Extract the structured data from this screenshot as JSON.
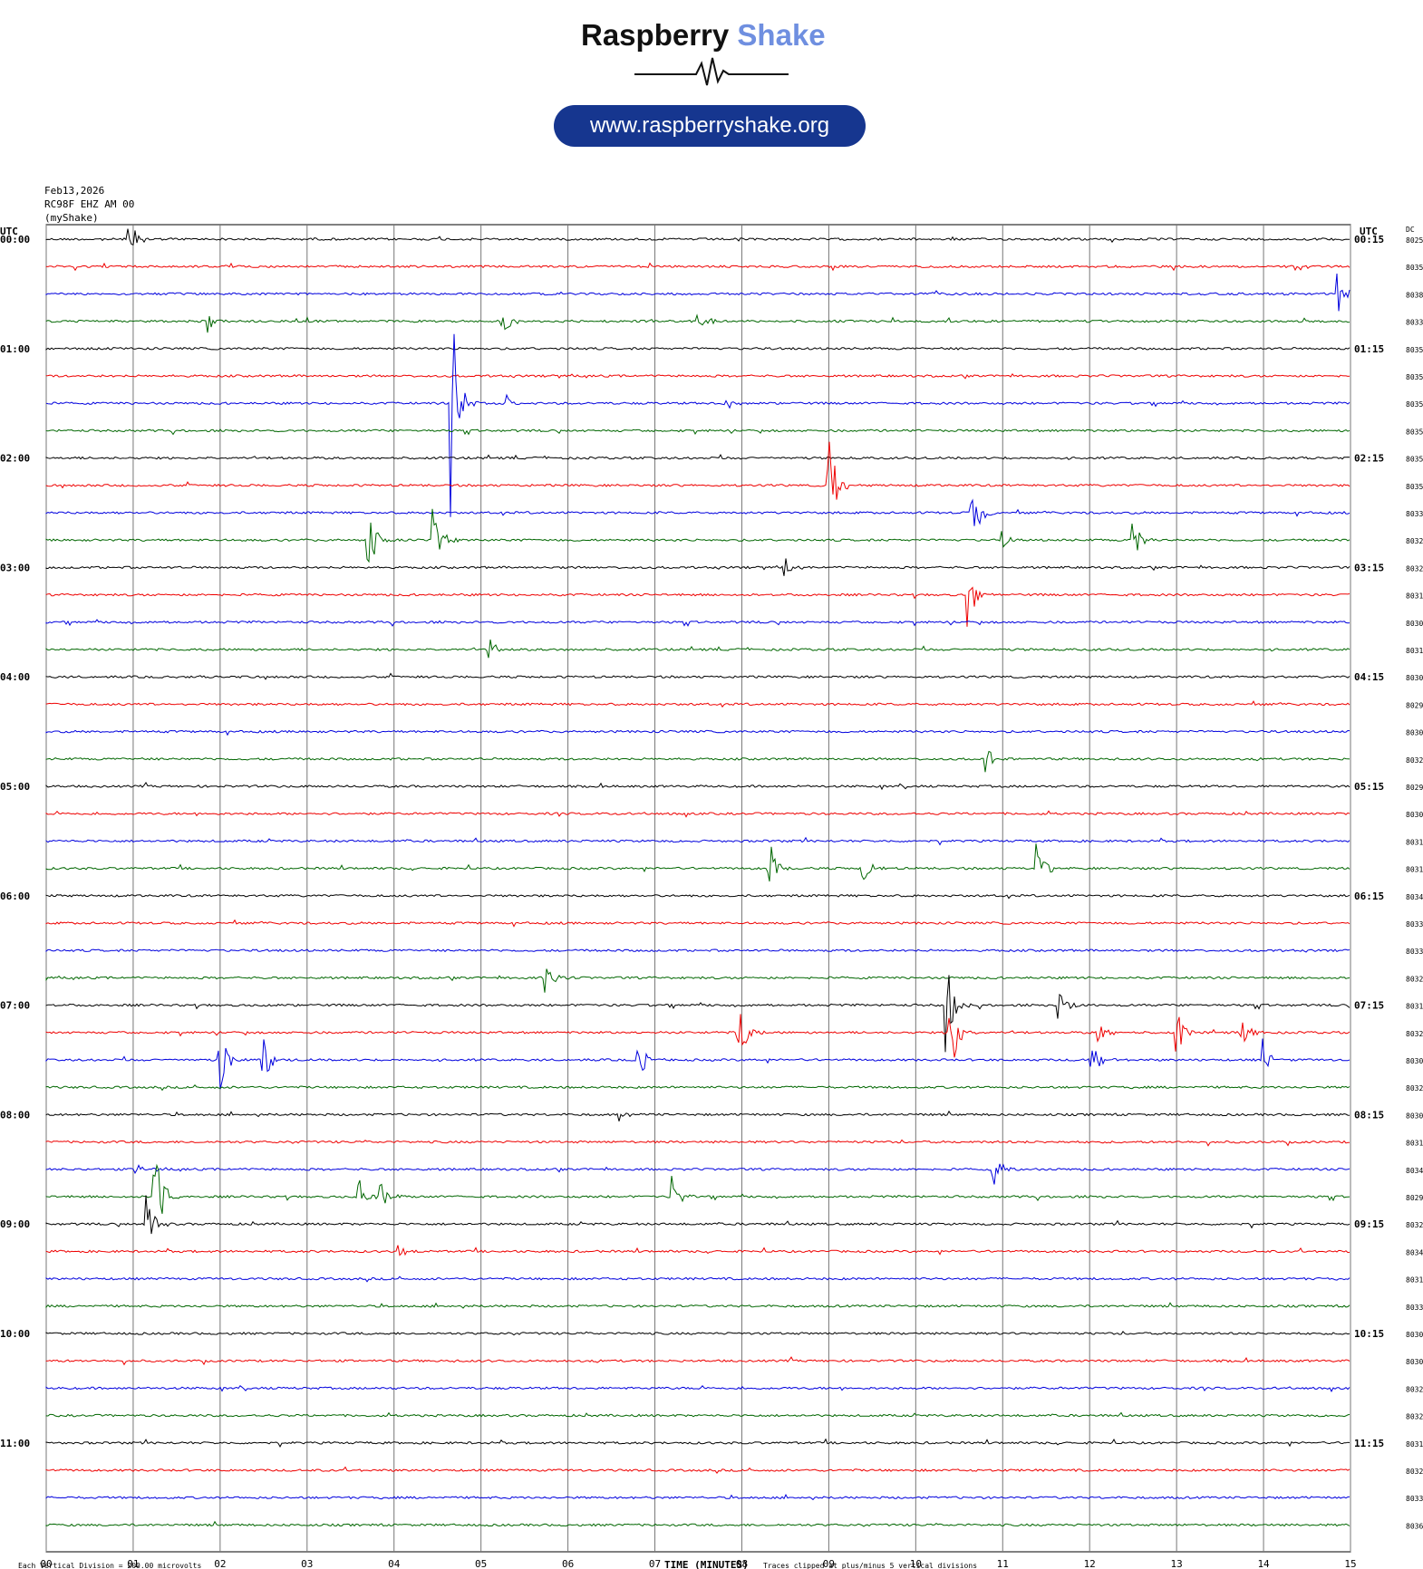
{
  "logo": {
    "title_left": "Raspberry",
    "title_right": "Shake",
    "url": "www.raspberryshake.org"
  },
  "header": {
    "date": "Feb13,2026",
    "station": "RC98F EHZ AM 00",
    "source": "(myShake)"
  },
  "chart_data": {
    "type": "line",
    "title": "",
    "xlabel": "TIME (MINUTES)",
    "x_ticks": [
      "00",
      "01",
      "02",
      "03",
      "04",
      "05",
      "06",
      "07",
      "08",
      "09",
      "10",
      "11",
      "12",
      "13",
      "14",
      "15"
    ],
    "xlim": [
      0,
      15
    ],
    "left_axis_label": "UTC",
    "right_axis_label": "UTC",
    "dc_label": "DC",
    "left_hour_labels": [
      "00:00",
      "01:00",
      "02:00",
      "03:00",
      "04:00",
      "05:00",
      "06:00",
      "07:00",
      "08:00",
      "09:00",
      "10:00",
      "11:00"
    ],
    "right_hour_labels": [
      "00:15",
      "01:15",
      "02:15",
      "03:15",
      "04:15",
      "05:15",
      "06:15",
      "07:15",
      "08:15",
      "09:15",
      "10:15",
      "11:15"
    ],
    "trace_colors": [
      "#000000",
      "#ee0000",
      "#0000dd",
      "#006600"
    ],
    "dc_values": [
      "8025",
      "8035",
      "8038",
      "8033",
      "8035",
      "8035",
      "8035",
      "8035",
      "8035",
      "8035",
      "8033",
      "8032",
      "8032",
      "8031",
      "8030",
      "8031",
      "8030",
      "8029",
      "8030",
      "8032",
      "8029",
      "8030",
      "8031",
      "8031",
      "8034",
      "8033",
      "8033",
      "8032",
      "8031",
      "8032",
      "8030",
      "8032",
      "8030",
      "8031",
      "8034",
      "8029",
      "8032",
      "8034",
      "8031",
      "8033",
      "8030",
      "8030",
      "8032",
      "8032",
      "8031",
      "8032",
      "8033",
      "8036"
    ],
    "footer_left": "Each Vertical Division =  200.00 microvolts",
    "footer_right": "Traces clipped at plus/minus 5 vertical divisions",
    "events": [
      {
        "row": 0,
        "minute": 0.95,
        "amp": 28,
        "color": "#000000"
      },
      {
        "row": 2,
        "minute": 14.85,
        "amp": 26,
        "color": "#0000dd"
      },
      {
        "row": 3,
        "minute": 1.85,
        "amp": 16,
        "color": "#006600"
      },
      {
        "row": 3,
        "minute": 5.25,
        "amp": 18,
        "color": "#006600"
      },
      {
        "row": 3,
        "minute": 7.5,
        "amp": 16,
        "color": "#006600"
      },
      {
        "row": 6,
        "minute": 4.65,
        "amp": 140,
        "color": "#0000dd"
      },
      {
        "row": 6,
        "minute": 5.3,
        "amp": 10,
        "color": "#0000dd"
      },
      {
        "row": 6,
        "minute": 7.8,
        "amp": 10,
        "color": "#0000dd"
      },
      {
        "row": 9,
        "minute": 9.0,
        "amp": 60,
        "color": "#ee0000"
      },
      {
        "row": 10,
        "minute": 10.65,
        "amp": 40,
        "color": "#0000dd"
      },
      {
        "row": 11,
        "minute": 3.7,
        "amp": 45,
        "color": "#006600"
      },
      {
        "row": 11,
        "minute": 4.45,
        "amp": 40,
        "color": "#006600"
      },
      {
        "row": 11,
        "minute": 11.0,
        "amp": 12,
        "color": "#006600"
      },
      {
        "row": 11,
        "minute": 12.5,
        "amp": 25,
        "color": "#006600"
      },
      {
        "row": 12,
        "minute": 8.5,
        "amp": 12,
        "color": "#000000"
      },
      {
        "row": 13,
        "minute": 10.6,
        "amp": 40,
        "color": "#ee0000"
      },
      {
        "row": 15,
        "minute": 5.1,
        "amp": 14,
        "color": "#006600"
      },
      {
        "row": 19,
        "minute": 10.8,
        "amp": 18,
        "color": "#006600"
      },
      {
        "row": 23,
        "minute": 8.3,
        "amp": 45,
        "color": "#006600"
      },
      {
        "row": 23,
        "minute": 11.4,
        "amp": 30,
        "color": "#006600"
      },
      {
        "row": 23,
        "minute": 9.4,
        "amp": 20,
        "color": "#006600"
      },
      {
        "row": 27,
        "minute": 5.75,
        "amp": 18,
        "color": "#006600"
      },
      {
        "row": 28,
        "minute": 10.35,
        "amp": 55,
        "color": "#000000"
      },
      {
        "row": 28,
        "minute": 11.65,
        "amp": 20,
        "color": "#000000"
      },
      {
        "row": 29,
        "minute": 7.95,
        "amp": 45,
        "color": "#ee0000"
      },
      {
        "row": 29,
        "minute": 10.4,
        "amp": 55,
        "color": "#ee0000"
      },
      {
        "row": 29,
        "minute": 12.1,
        "amp": 30,
        "color": "#ee0000"
      },
      {
        "row": 29,
        "minute": 13.0,
        "amp": 25,
        "color": "#ee0000"
      },
      {
        "row": 29,
        "minute": 13.75,
        "amp": 20,
        "color": "#ee0000"
      },
      {
        "row": 30,
        "minute": 2.0,
        "amp": 35,
        "color": "#0000dd"
      },
      {
        "row": 30,
        "minute": 2.5,
        "amp": 30,
        "color": "#0000dd"
      },
      {
        "row": 30,
        "minute": 6.8,
        "amp": 28,
        "color": "#0000dd"
      },
      {
        "row": 30,
        "minute": 12.0,
        "amp": 30,
        "color": "#0000dd"
      },
      {
        "row": 30,
        "minute": 14.0,
        "amp": 25,
        "color": "#0000dd"
      },
      {
        "row": 32,
        "minute": 6.6,
        "amp": 8,
        "color": "#000000"
      },
      {
        "row": 34,
        "minute": 1.0,
        "amp": 15,
        "color": "#0000dd"
      },
      {
        "row": 34,
        "minute": 10.9,
        "amp": 20,
        "color": "#0000dd"
      },
      {
        "row": 35,
        "minute": 1.25,
        "amp": 70,
        "color": "#006600"
      },
      {
        "row": 35,
        "minute": 3.6,
        "amp": 20,
        "color": "#006600"
      },
      {
        "row": 35,
        "minute": 3.85,
        "amp": 18,
        "color": "#006600"
      },
      {
        "row": 35,
        "minute": 7.2,
        "amp": 30,
        "color": "#006600"
      },
      {
        "row": 36,
        "minute": 1.15,
        "amp": 45,
        "color": "#000000"
      },
      {
        "row": 37,
        "minute": 4.05,
        "amp": 10,
        "color": "#ee0000"
      }
    ]
  }
}
